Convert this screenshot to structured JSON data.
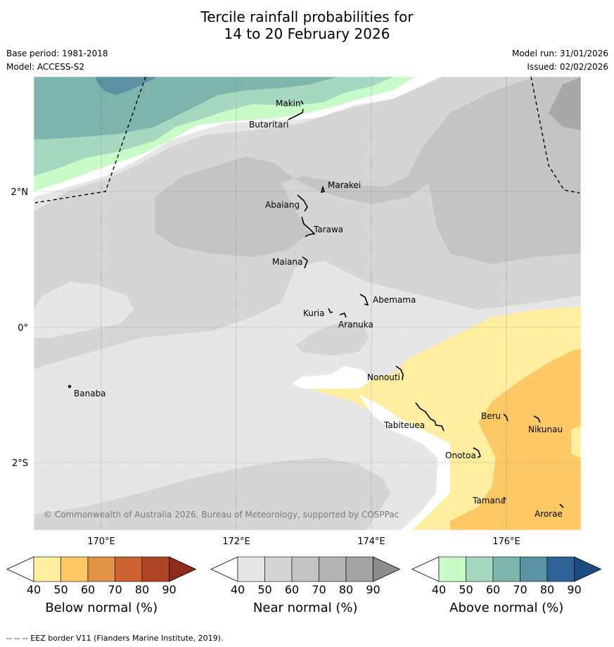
{
  "title_line1": "Tercile rainfall probabilities for",
  "title_line2": "14 to 20 February 2026",
  "meta": {
    "base_period": "Base period: 1981-2018",
    "model": "Model: ACCESS-S2",
    "model_run": "Model run: 31/01/2026",
    "issued": "Issued: 02/02/2026"
  },
  "axes": {
    "lon_labels": [
      "170°E",
      "172°E",
      "174°E",
      "176°E"
    ],
    "lat_labels": [
      "2°N",
      "0°",
      "2°S"
    ]
  },
  "places": [
    {
      "name": "Makin"
    },
    {
      "name": "Butaritari"
    },
    {
      "name": "Marakei"
    },
    {
      "name": "Abaiang"
    },
    {
      "name": "Tarawa"
    },
    {
      "name": "Maiana"
    },
    {
      "name": "Abemama"
    },
    {
      "name": "Kuria"
    },
    {
      "name": "Aranuka"
    },
    {
      "name": "Nonouti"
    },
    {
      "name": "Banaba"
    },
    {
      "name": "Tabiteuea"
    },
    {
      "name": "Beru"
    },
    {
      "name": "Nikunau"
    },
    {
      "name": "Onotoa"
    },
    {
      "name": "Tamana"
    },
    {
      "name": "Arorae"
    }
  ],
  "copyright": "© Commonwealth of Australia 2026, Bureau of Meteorology, supported by COSPPac",
  "colorbars": [
    {
      "title": "Below normal (%)",
      "ticks": [
        "40",
        "50",
        "60",
        "70",
        "80",
        "90"
      ],
      "colors": [
        "#ffffff",
        "#ffeda0",
        "#fec965",
        "#e09247",
        "#cc6330",
        "#ae4626",
        "#8e2b1b"
      ]
    },
    {
      "title": "Near normal (%)",
      "ticks": [
        "40",
        "50",
        "60",
        "70",
        "80",
        "90"
      ],
      "colors": [
        "#ffffff",
        "#e6e6e6",
        "#d5d5d5",
        "#c4c4c4",
        "#b3b3b3",
        "#a3a3a3",
        "#8c8c8c"
      ]
    },
    {
      "title": "Above normal (%)",
      "ticks": [
        "40",
        "50",
        "60",
        "70",
        "80",
        "90"
      ],
      "colors": [
        "#ffffff",
        "#c9fbc9",
        "#a5d8be",
        "#7db5ad",
        "#5a91a3",
        "#2f6397",
        "#1a4b82"
      ]
    }
  ],
  "footnote": "-- -- -- EEZ border V11 (Flanders Marine Institute, 2019)."
}
